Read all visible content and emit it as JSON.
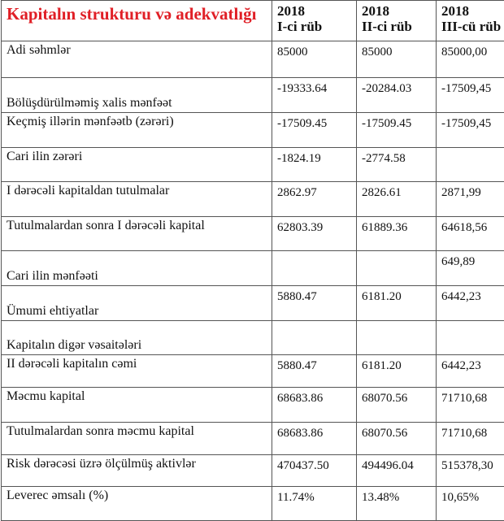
{
  "title": "Kapitalın strukturu və adekvatlığı",
  "columns": [
    {
      "year": "2018",
      "quarter": "I-ci rüb"
    },
    {
      "year": "2018",
      "quarter": "II-ci rüb"
    },
    {
      "year": "2018",
      "quarter": "III-cü rüb"
    }
  ],
  "rows": [
    {
      "label": "Adi səhmlər",
      "values": [
        "85000",
        "85000",
        "85000,00"
      ]
    },
    {
      "label": "Bölüşdürülməmiş xalis mənfəət",
      "values": [
        "-19333.64",
        "-20284.03",
        "-17509,45"
      ]
    },
    {
      "label": "Keçmiş illərin mənfəətb (zərəri)",
      "values": [
        "-17509.45",
        "-17509.45",
        "-17509,45"
      ]
    },
    {
      "label": "Cari ilin zərəri",
      "values": [
        "-1824.19",
        "-2774.58",
        ""
      ]
    },
    {
      "label": "I dərəcəli kapitaldan tutulmalar",
      "values": [
        "2862.97",
        "2826.61",
        "2871,99"
      ]
    },
    {
      "label": "Tutulmalardan sonra I dərəcəli kapital",
      "values": [
        "62803.39",
        "61889.36",
        "64618,56"
      ]
    },
    {
      "label": "Cari ilin mənfəəti",
      "values": [
        "",
        "",
        "649,89"
      ]
    },
    {
      "label": "Ümumi ehtiyatlar",
      "values": [
        "5880.47",
        "6181.20",
        "6442,23"
      ]
    },
    {
      "label": "Kapitalın digər vəsaitələri",
      "values": [
        "",
        "",
        ""
      ]
    },
    {
      "label": "II dərəcəli kapitalın cəmi",
      "values": [
        "5880.47",
        "6181.20",
        "6442,23"
      ]
    },
    {
      "label": "Məcmu kapital",
      "values": [
        "68683.86",
        "68070.56",
        "71710,68"
      ]
    },
    {
      "label": "Tutulmalardan sonra məcmu kapital",
      "values": [
        "68683.86",
        "68070.56",
        "71710,68"
      ]
    },
    {
      "label": "Risk dərəcəsi üzrə ölçülmüş aktivlər",
      "values": [
        "470437.50",
        "494496.04",
        "515378,30"
      ]
    },
    {
      "label": "Leverec əmsalı (%)",
      "values": [
        "11.74%",
        "13.48%",
        "10,65%"
      ]
    }
  ],
  "colors": {
    "title": "#e01f26",
    "border": "#555555"
  }
}
